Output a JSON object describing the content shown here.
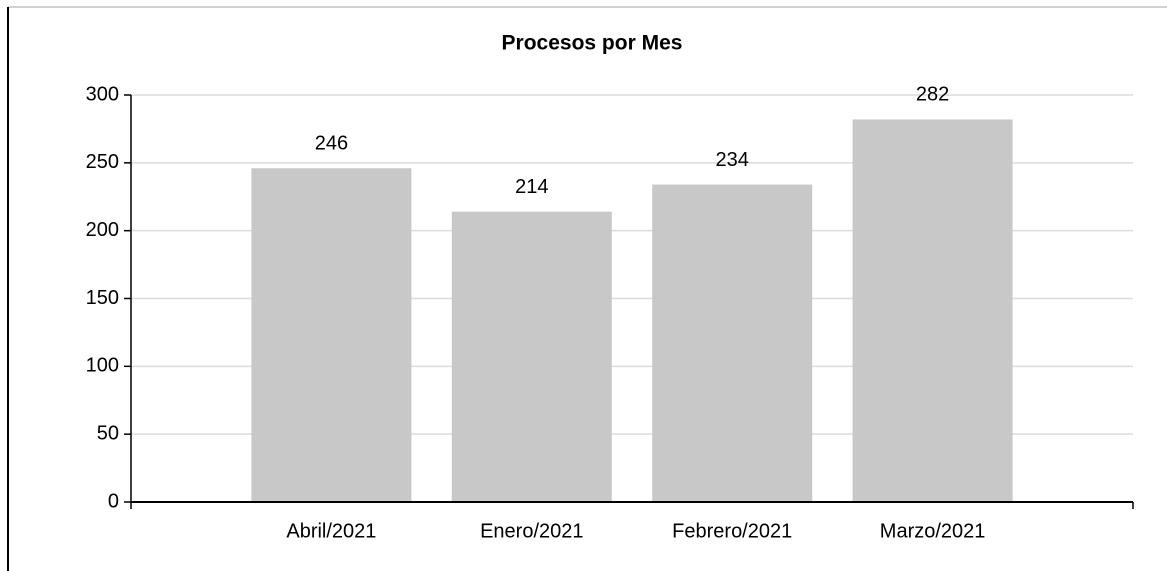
{
  "chart_data": {
    "type": "bar",
    "title": "Procesos por Mes",
    "categories": [
      "Abril/2021",
      "Enero/2021",
      "Febrero/2021",
      "Marzo/2021"
    ],
    "values": [
      246,
      214,
      234,
      282
    ],
    "color": "#c8c8c8",
    "ylim": [
      0,
      300
    ],
    "yticks": [
      0,
      50,
      100,
      150,
      200,
      250,
      300
    ],
    "grid": true
  }
}
